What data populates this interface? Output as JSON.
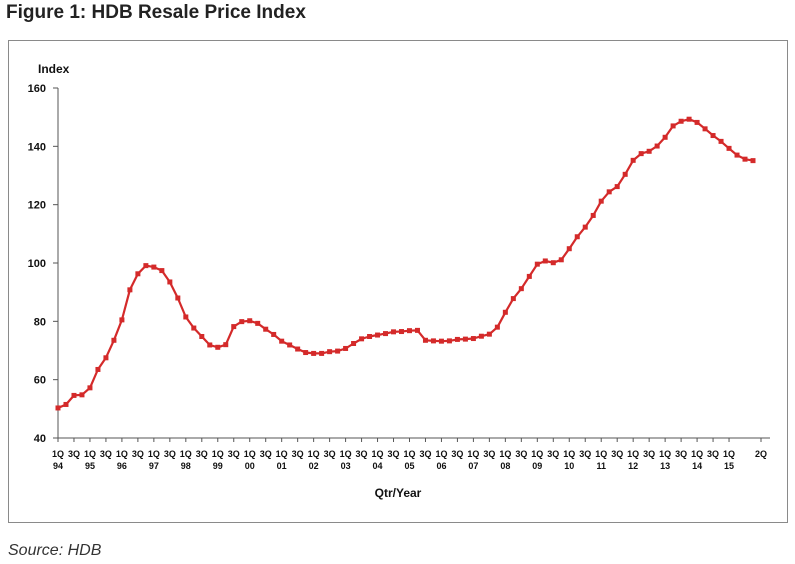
{
  "figure": {
    "title": "Figure 1: HDB Resale Price Index",
    "source": "Source: HDB"
  },
  "chart_data": {
    "type": "line",
    "title": "Figure 1: HDB Resale Price Index",
    "ylabel": "Index",
    "xlabel": "Qtr/Year",
    "ylim": [
      40,
      160
    ],
    "yticks": [
      40,
      60,
      80,
      100,
      120,
      140,
      160
    ],
    "grid": false,
    "color": "#d42a2a",
    "x_tick_labels": [
      {
        "q": "1Q",
        "y": "94"
      },
      {
        "q": "3Q",
        "y": ""
      },
      {
        "q": "1Q",
        "y": "95"
      },
      {
        "q": "3Q",
        "y": ""
      },
      {
        "q": "1Q",
        "y": "96"
      },
      {
        "q": "3Q",
        "y": ""
      },
      {
        "q": "1Q",
        "y": "97"
      },
      {
        "q": "3Q",
        "y": ""
      },
      {
        "q": "1Q",
        "y": "98"
      },
      {
        "q": "3Q",
        "y": ""
      },
      {
        "q": "1Q",
        "y": "99"
      },
      {
        "q": "3Q",
        "y": ""
      },
      {
        "q": "1Q",
        "y": "00"
      },
      {
        "q": "3Q",
        "y": ""
      },
      {
        "q": "1Q",
        "y": "01"
      },
      {
        "q": "3Q",
        "y": ""
      },
      {
        "q": "1Q",
        "y": "02"
      },
      {
        "q": "3Q",
        "y": ""
      },
      {
        "q": "1Q",
        "y": "03"
      },
      {
        "q": "3Q",
        "y": ""
      },
      {
        "q": "1Q",
        "y": "04"
      },
      {
        "q": "3Q",
        "y": ""
      },
      {
        "q": "1Q",
        "y": "05"
      },
      {
        "q": "3Q",
        "y": ""
      },
      {
        "q": "1Q",
        "y": "06"
      },
      {
        "q": "3Q",
        "y": ""
      },
      {
        "q": "1Q",
        "y": "07"
      },
      {
        "q": "3Q",
        "y": ""
      },
      {
        "q": "1Q",
        "y": "08"
      },
      {
        "q": "3Q",
        "y": ""
      },
      {
        "q": "1Q",
        "y": "09"
      },
      {
        "q": "3Q",
        "y": ""
      },
      {
        "q": "1Q",
        "y": "10"
      },
      {
        "q": "3Q",
        "y": ""
      },
      {
        "q": "1Q",
        "y": "11"
      },
      {
        "q": "3Q",
        "y": ""
      },
      {
        "q": "1Q",
        "y": "12"
      },
      {
        "q": "3Q",
        "y": ""
      },
      {
        "q": "1Q",
        "y": "13"
      },
      {
        "q": "3Q",
        "y": ""
      },
      {
        "q": "1Q",
        "y": "14"
      },
      {
        "q": "3Q",
        "y": ""
      },
      {
        "q": "1Q",
        "y": "15"
      },
      {
        "q": "2Q",
        "y": ""
      }
    ],
    "series": [
      {
        "values": [
          50.3,
          51.5,
          54.6,
          54.8,
          57.2,
          63.5,
          67.5,
          73.5,
          80.5,
          90.8,
          96.3,
          99.1,
          98.6,
          97.4,
          93.5,
          88.0,
          81.5,
          77.7,
          74.8,
          71.9,
          71.1,
          72.0,
          78.2,
          79.9,
          80.2,
          79.3,
          77.3,
          75.5,
          73.2,
          71.9,
          70.5,
          69.3,
          69.0,
          69.0,
          69.6,
          69.8,
          70.7,
          72.4,
          74.0,
          74.8,
          75.3,
          75.8,
          76.4,
          76.5,
          76.8,
          76.9,
          73.5,
          73.3,
          73.2,
          73.3,
          73.8,
          73.9,
          74.1,
          74.9,
          75.6,
          78.0,
          83.1,
          87.8,
          91.2,
          95.4,
          99.6,
          100.7,
          100.1,
          101.1,
          104.9,
          109.0,
          112.3,
          116.3,
          121.2,
          124.4,
          126.2,
          130.4,
          135.2,
          137.5,
          138.3,
          140.1,
          143.1,
          147.0,
          148.6,
          149.3,
          148.2,
          146.0,
          143.7,
          141.7,
          139.3,
          137.0,
          135.6,
          135.1
        ]
      }
    ]
  }
}
